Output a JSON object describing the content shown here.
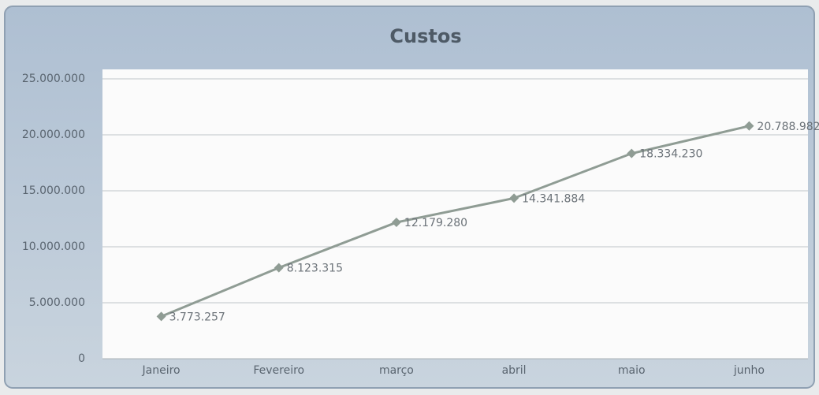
{
  "chart_data": {
    "type": "line",
    "title": "Custos",
    "categories": [
      "Janeiro",
      "Fevereiro",
      "março",
      "abril",
      "maio",
      "junho"
    ],
    "series": [
      {
        "name": "Custos",
        "color": "#8f9c94",
        "values": [
          3773257,
          8123315,
          12179280,
          14341884,
          18334230,
          20788982
        ],
        "value_labels": [
          "3.773.257",
          "8.123.315",
          "12.179.280",
          "14.341.884",
          "18.334.230",
          "20.788.982"
        ]
      }
    ],
    "ylim": [
      0,
      25000000
    ],
    "yticks": [
      0,
      {
        "value": 5000000,
        "label": "5.000.000"
      },
      {
        "value": 10000000,
        "label": "10.000.000"
      },
      {
        "value": 15000000,
        "label": "15.000.000"
      },
      {
        "value": 20000000,
        "label": "20.000.000"
      },
      {
        "value": 25000000,
        "label": "25.000.000"
      }
    ],
    "grid": true,
    "legend": false
  }
}
